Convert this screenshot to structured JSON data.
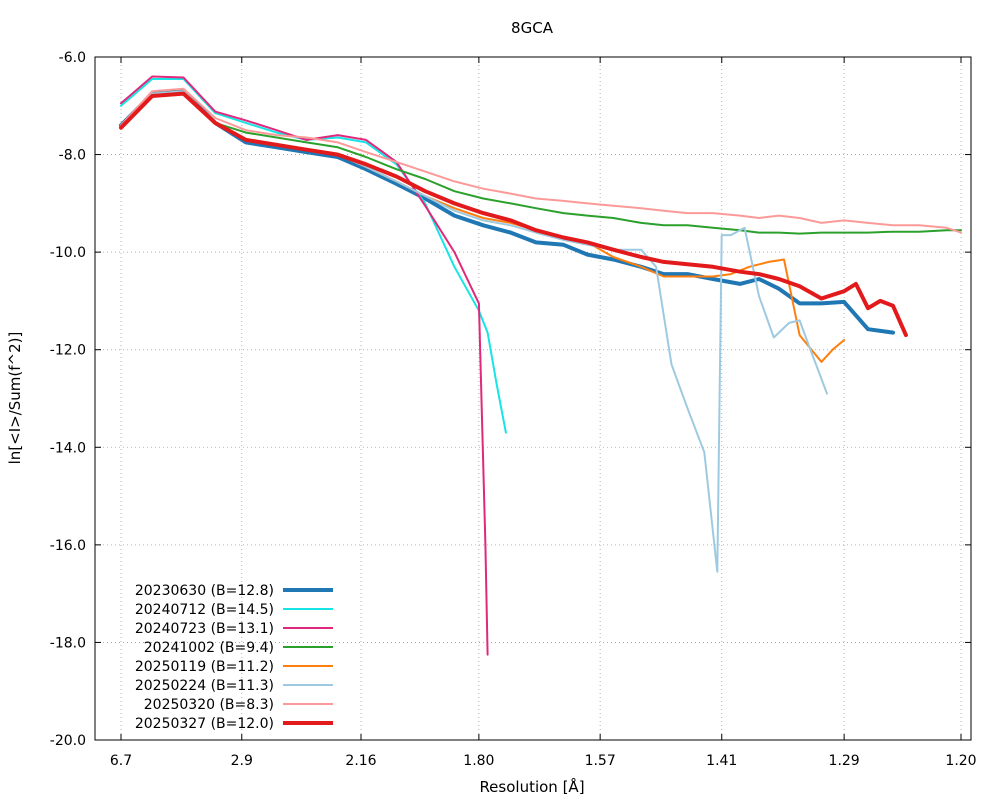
{
  "chart_data": {
    "type": "line",
    "title": "8GCA",
    "xlabel": "Resolution [Å]",
    "ylabel": "ln[<I>/Sum(f^2)]",
    "x_scale": "inverse-square resolution (1/d^2)",
    "xlim": [
      6.7,
      1.2
    ],
    "ylim": [
      -20.0,
      -6.0
    ],
    "x_ticks": [
      {
        "label": "6.7",
        "value": 6.7
      },
      {
        "label": "2.9",
        "value": 2.9
      },
      {
        "label": "2.16",
        "value": 2.16
      },
      {
        "label": "1.80",
        "value": 1.8
      },
      {
        "label": "1.57",
        "value": 1.57
      },
      {
        "label": "1.41",
        "value": 1.41
      },
      {
        "label": "1.29",
        "value": 1.29
      },
      {
        "label": "1.20",
        "value": 1.2
      }
    ],
    "y_ticks": [
      {
        "label": "-6.0",
        "value": -6.0
      },
      {
        "label": "-8.0",
        "value": -8.0
      },
      {
        "label": "-10.0",
        "value": -10.0
      },
      {
        "label": "-12.0",
        "value": -12.0
      },
      {
        "label": "-14.0",
        "value": -14.0
      },
      {
        "label": "-16.0",
        "value": -16.0
      },
      {
        "label": "-18.0",
        "value": -18.0
      },
      {
        "label": "-20.0",
        "value": -20.0
      }
    ],
    "grid": true,
    "legend_position": "bottom-left",
    "series": [
      {
        "name": "20230630 (B=12.8)",
        "color": "#1f77b4",
        "width": 4,
        "x": [
          6.7,
          4.6,
          3.72,
          3.2,
          2.86,
          2.61,
          2.42,
          2.26,
          2.14,
          2.03,
          1.94,
          1.86,
          1.79,
          1.73,
          1.68,
          1.63,
          1.59,
          1.55,
          1.51,
          1.48,
          1.45,
          1.42,
          1.39,
          1.37,
          1.35,
          1.33,
          1.31,
          1.29,
          1.27,
          1.25
        ],
        "y": [
          -7.4,
          -6.75,
          -6.7,
          -7.35,
          -7.75,
          -7.85,
          -7.95,
          -8.05,
          -8.3,
          -8.6,
          -8.9,
          -9.25,
          -9.45,
          -9.6,
          -9.8,
          -9.85,
          -10.05,
          -10.15,
          -10.3,
          -10.45,
          -10.45,
          -10.55,
          -10.65,
          -10.55,
          -10.75,
          -11.05,
          -11.05,
          -11.02,
          -11.58,
          -11.65
        ]
      },
      {
        "name": "20240712 (B=14.5)",
        "color": "#17e5e5",
        "width": 2,
        "x": [
          6.7,
          4.6,
          3.72,
          3.2,
          2.86,
          2.61,
          2.42,
          2.26,
          2.14,
          2.03,
          1.94,
          1.86,
          1.8,
          1.78,
          1.76,
          1.74
        ],
        "y": [
          -7.0,
          -6.45,
          -6.45,
          -7.15,
          -7.35,
          -7.55,
          -7.7,
          -7.65,
          -7.75,
          -8.2,
          -9.0,
          -10.3,
          -11.2,
          -11.65,
          -12.7,
          -13.7
        ]
      },
      {
        "name": "20240723 (B=13.1)",
        "color": "#e0287c",
        "width": 2,
        "x": [
          6.7,
          4.6,
          3.72,
          3.2,
          2.86,
          2.61,
          2.42,
          2.26,
          2.14,
          2.03,
          1.94,
          1.86,
          1.8,
          1.785,
          1.78
        ],
        "y": [
          -6.95,
          -6.4,
          -6.42,
          -7.12,
          -7.3,
          -7.5,
          -7.7,
          -7.6,
          -7.7,
          -8.15,
          -9.05,
          -10.0,
          -11.05,
          -16.0,
          -18.25
        ]
      },
      {
        "name": "20241002 (B=9.4)",
        "color": "#2ca02c",
        "width": 2,
        "x": [
          6.7,
          4.6,
          3.72,
          3.2,
          2.86,
          2.61,
          2.42,
          2.26,
          2.14,
          2.03,
          1.94,
          1.86,
          1.79,
          1.73,
          1.68,
          1.63,
          1.59,
          1.55,
          1.51,
          1.48,
          1.45,
          1.42,
          1.39,
          1.37,
          1.35,
          1.33,
          1.31,
          1.29,
          1.27,
          1.25,
          1.23,
          1.21,
          1.2
        ],
        "y": [
          -7.4,
          -6.75,
          -6.7,
          -7.35,
          -7.55,
          -7.65,
          -7.75,
          -7.85,
          -8.05,
          -8.3,
          -8.5,
          -8.75,
          -8.9,
          -9.0,
          -9.1,
          -9.2,
          -9.25,
          -9.3,
          -9.4,
          -9.45,
          -9.45,
          -9.5,
          -9.55,
          -9.6,
          -9.6,
          -9.62,
          -9.6,
          -9.6,
          -9.6,
          -9.58,
          -9.58,
          -9.55,
          -9.55
        ]
      },
      {
        "name": "20250119 (B=11.2)",
        "color": "#ff7f0e",
        "width": 2,
        "x": [
          6.7,
          4.6,
          3.72,
          3.2,
          2.86,
          2.61,
          2.42,
          2.26,
          2.14,
          2.03,
          1.94,
          1.86,
          1.79,
          1.73,
          1.68,
          1.63,
          1.59,
          1.55,
          1.51,
          1.48,
          1.45,
          1.42,
          1.4,
          1.38,
          1.36,
          1.345,
          1.33,
          1.31,
          1.3,
          1.29
        ],
        "y": [
          -7.4,
          -6.75,
          -6.7,
          -7.35,
          -7.7,
          -7.8,
          -7.9,
          -8.0,
          -8.25,
          -8.55,
          -8.85,
          -9.1,
          -9.3,
          -9.4,
          -9.55,
          -9.7,
          -9.8,
          -10.1,
          -10.3,
          -10.5,
          -10.5,
          -10.5,
          -10.45,
          -10.3,
          -10.2,
          -10.15,
          -11.7,
          -12.25,
          -12.0,
          -11.8
        ]
      },
      {
        "name": "20250224 (B=11.3)",
        "color": "#9ecae1",
        "width": 2,
        "x": [
          6.7,
          4.6,
          3.72,
          3.2,
          2.86,
          2.61,
          2.42,
          2.26,
          2.14,
          2.03,
          1.94,
          1.86,
          1.79,
          1.73,
          1.68,
          1.63,
          1.59,
          1.55,
          1.51,
          1.49,
          1.47,
          1.45,
          1.43,
          1.415,
          1.41,
          1.4,
          1.385,
          1.37,
          1.355,
          1.34,
          1.33,
          1.32,
          1.305
        ],
        "y": [
          -7.4,
          -6.75,
          -6.7,
          -7.35,
          -7.7,
          -7.8,
          -7.9,
          -8.0,
          -8.25,
          -8.55,
          -8.85,
          -9.15,
          -9.35,
          -9.45,
          -9.6,
          -9.75,
          -9.85,
          -9.95,
          -9.95,
          -10.3,
          -12.3,
          -13.2,
          -14.1,
          -16.55,
          -9.65,
          -9.65,
          -9.5,
          -10.9,
          -11.75,
          -11.45,
          -11.4,
          -12.0,
          -12.9
        ]
      },
      {
        "name": "20250320 (B=8.3)",
        "color": "#fb9a99",
        "width": 2,
        "x": [
          6.7,
          4.6,
          3.72,
          3.2,
          2.86,
          2.61,
          2.42,
          2.26,
          2.14,
          2.03,
          1.94,
          1.86,
          1.79,
          1.73,
          1.68,
          1.63,
          1.59,
          1.55,
          1.51,
          1.48,
          1.45,
          1.42,
          1.39,
          1.37,
          1.35,
          1.33,
          1.31,
          1.29,
          1.27,
          1.25,
          1.23,
          1.21,
          1.2
        ],
        "y": [
          -7.4,
          -6.7,
          -6.65,
          -7.25,
          -7.5,
          -7.6,
          -7.65,
          -7.75,
          -7.95,
          -8.15,
          -8.35,
          -8.55,
          -8.7,
          -8.8,
          -8.9,
          -8.95,
          -9.0,
          -9.05,
          -9.1,
          -9.15,
          -9.2,
          -9.2,
          -9.25,
          -9.3,
          -9.25,
          -9.3,
          -9.4,
          -9.35,
          -9.4,
          -9.45,
          -9.45,
          -9.5,
          -9.6
        ]
      },
      {
        "name": "20250327 (B=12.0)",
        "color": "#e31a1c",
        "width": 4,
        "x": [
          6.7,
          4.6,
          3.72,
          3.2,
          2.86,
          2.61,
          2.42,
          2.26,
          2.14,
          2.03,
          1.94,
          1.86,
          1.79,
          1.73,
          1.68,
          1.63,
          1.59,
          1.55,
          1.51,
          1.48,
          1.45,
          1.42,
          1.39,
          1.37,
          1.35,
          1.33,
          1.31,
          1.29,
          1.28,
          1.27,
          1.26,
          1.25,
          1.24
        ],
        "y": [
          -7.45,
          -6.8,
          -6.75,
          -7.35,
          -7.7,
          -7.8,
          -7.9,
          -8.0,
          -8.2,
          -8.45,
          -8.75,
          -9.0,
          -9.2,
          -9.35,
          -9.55,
          -9.7,
          -9.8,
          -9.95,
          -10.1,
          -10.2,
          -10.25,
          -10.3,
          -10.4,
          -10.45,
          -10.55,
          -10.7,
          -10.95,
          -10.8,
          -10.65,
          -11.15,
          -11.0,
          -11.1,
          -11.7
        ]
      }
    ]
  }
}
